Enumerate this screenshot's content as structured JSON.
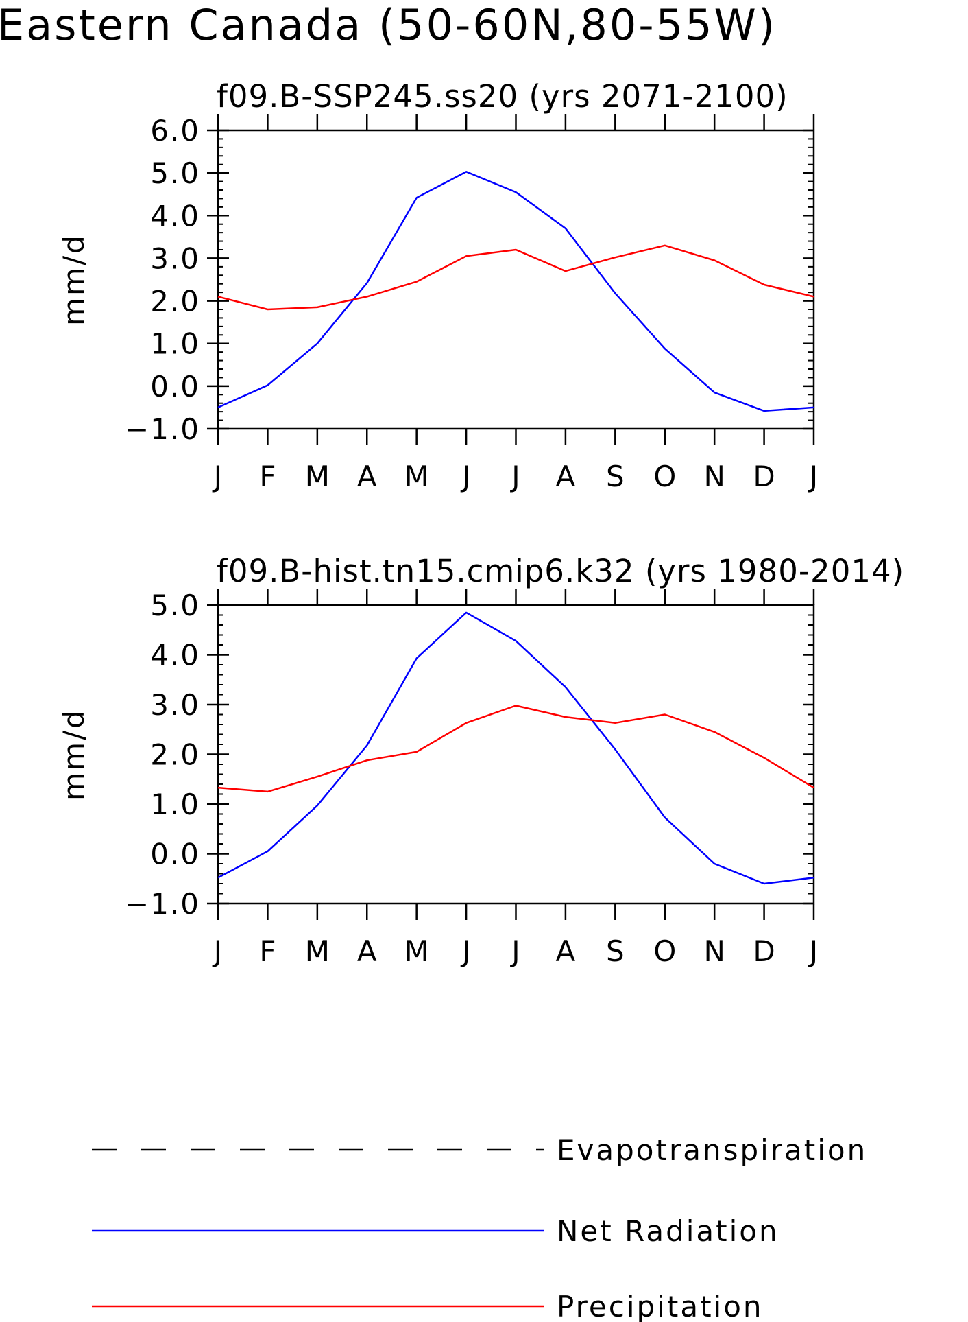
{
  "page": {
    "title": "Eastern Canada (50-60N,80-55W)"
  },
  "legend": {
    "placement": "bottom",
    "items": [
      {
        "label": "Evapotranspiration",
        "color": "#000000",
        "style": "dashed"
      },
      {
        "label": "Net Radiation",
        "color": "#0000ff",
        "style": "solid"
      },
      {
        "label": "Precipitation",
        "color": "#ff0000",
        "style": "solid"
      }
    ]
  },
  "chart_data": [
    {
      "type": "line",
      "title": "f09.B-SSP245.ss20 (yrs 2071-2100)",
      "xlabel": "",
      "ylabel": "mm/d",
      "ylim": [
        -1.0,
        6.0
      ],
      "yticks": [
        "-1.0",
        "0.0",
        "1.0",
        "2.0",
        "3.0",
        "4.0",
        "5.0",
        "6.0"
      ],
      "categories": [
        "J",
        "F",
        "M",
        "A",
        "M",
        "J",
        "J",
        "A",
        "S",
        "O",
        "N",
        "D",
        "J"
      ],
      "series": [
        {
          "name": "Net Radiation",
          "color": "#0000ff",
          "values": [
            -0.5,
            0.02,
            1.0,
            2.42,
            4.42,
            5.03,
            4.55,
            3.7,
            2.18,
            0.88,
            -0.15,
            -0.58,
            -0.5
          ]
        },
        {
          "name": "Precipitation",
          "color": "#ff0000",
          "values": [
            2.1,
            1.8,
            1.85,
            2.1,
            2.45,
            3.05,
            3.2,
            2.7,
            3.02,
            3.3,
            2.95,
            2.38,
            2.1
          ]
        }
      ]
    },
    {
      "type": "line",
      "title": "f09.B-hist.tn15.cmip6.k32 (yrs 1980-2014)",
      "xlabel": "",
      "ylabel": "mm/d",
      "ylim": [
        -1.0,
        5.0
      ],
      "yticks": [
        "-1.0",
        "0.0",
        "1.0",
        "2.0",
        "3.0",
        "4.0",
        "5.0"
      ],
      "categories": [
        "J",
        "F",
        "M",
        "A",
        "M",
        "J",
        "J",
        "A",
        "S",
        "O",
        "N",
        "D",
        "J"
      ],
      "series": [
        {
          "name": "Net Radiation",
          "color": "#0000ff",
          "values": [
            -0.48,
            0.05,
            0.97,
            2.18,
            3.93,
            4.85,
            4.28,
            3.35,
            2.1,
            0.73,
            -0.2,
            -0.6,
            -0.48
          ]
        },
        {
          "name": "Precipitation",
          "color": "#ff0000",
          "values": [
            1.33,
            1.25,
            1.55,
            1.88,
            2.05,
            2.63,
            2.98,
            2.75,
            2.63,
            2.8,
            2.45,
            1.93,
            1.33
          ]
        }
      ]
    }
  ]
}
